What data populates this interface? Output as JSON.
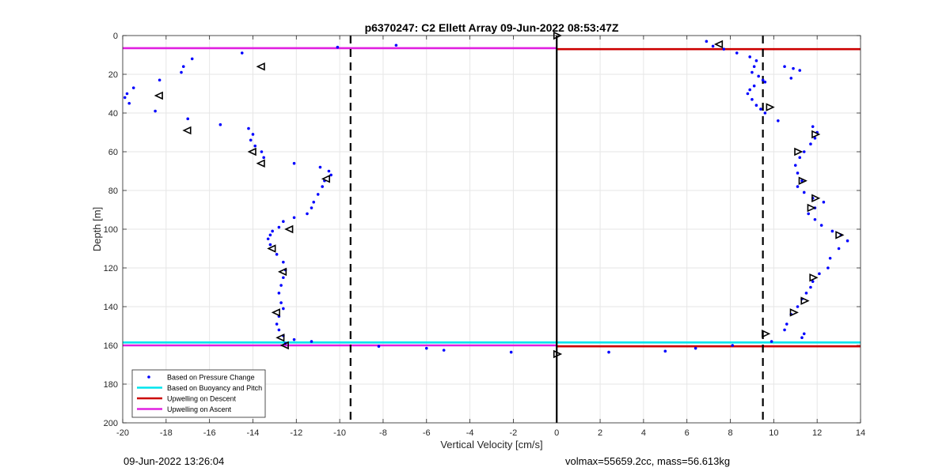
{
  "chart_data": {
    "type": "scatter",
    "title": "p6370247: C2 Ellett Array 09-Jun-2022 08:53:47Z",
    "xlabel": "Vertical Velocity [cm/s]",
    "ylabel": "Depth [m]",
    "xlim": [
      -20,
      14
    ],
    "ylim": [
      0,
      200
    ],
    "y_reversed": true,
    "grid": true,
    "xticks": [
      -20,
      -18,
      -16,
      -14,
      -12,
      -10,
      -8,
      -6,
      -4,
      -2,
      0,
      2,
      4,
      6,
      8,
      10,
      12,
      14
    ],
    "yticks": [
      0,
      20,
      40,
      60,
      80,
      100,
      120,
      140,
      160,
      180,
      200
    ],
    "legend_location": "bottom-left",
    "legend": [
      {
        "label": "Based on Pressure Change",
        "color": "#0000ff",
        "marker": "dot"
      },
      {
        "label": "Based on Buoyancy and Pitch",
        "color": "#00e5ee",
        "marker": "line"
      },
      {
        "label": "Upwelling on Descent",
        "color": "#cc0000",
        "marker": "line"
      },
      {
        "label": "Upwelling on Ascent",
        "color": "#e020e0",
        "marker": "line"
      }
    ],
    "vertical_lines": [
      {
        "x": -9.5,
        "style": "dashed",
        "color": "#000000"
      },
      {
        "x": 9.5,
        "style": "dashed",
        "color": "#000000"
      },
      {
        "x": 0,
        "style": "solid",
        "color": "#000000"
      }
    ],
    "horizontal_lines": [
      {
        "name": "Upwelling on Ascent",
        "y": 6.5,
        "x": [
          -20,
          0
        ],
        "color": "#e020e0"
      },
      {
        "name": "Upwelling on Descent",
        "y": 7,
        "x": [
          0,
          14
        ],
        "color": "#cc0000"
      },
      {
        "name": "Based on Buoyancy and Pitch",
        "y": 158.5,
        "x": [
          -20,
          14
        ],
        "color": "#00e5ee"
      },
      {
        "name": "Upwelling on Ascent",
        "y": 160,
        "x": [
          -20,
          0
        ],
        "color": "#e020e0"
      },
      {
        "name": "Upwelling on Descent",
        "y": 160.5,
        "x": [
          0,
          14
        ],
        "color": "#cc0000"
      }
    ],
    "series": [
      {
        "name": "Based on Pressure Change",
        "color": "#0000ff",
        "points": [
          [
            -14.5,
            9
          ],
          [
            -16.8,
            12
          ],
          [
            -17.2,
            16
          ],
          [
            -17.3,
            19
          ],
          [
            -18.3,
            23
          ],
          [
            -19.5,
            27
          ],
          [
            -19.8,
            30
          ],
          [
            -19.9,
            32
          ],
          [
            -19.7,
            35
          ],
          [
            -18.5,
            39
          ],
          [
            -17.0,
            43
          ],
          [
            -15.5,
            46
          ],
          [
            -14.2,
            48
          ],
          [
            -14.0,
            51
          ],
          [
            -14.1,
            54
          ],
          [
            -13.9,
            57
          ],
          [
            -13.6,
            60
          ],
          [
            -13.5,
            63
          ],
          [
            -12.1,
            66
          ],
          [
            -10.9,
            68
          ],
          [
            -10.5,
            70
          ],
          [
            -10.4,
            72
          ],
          [
            -10.7,
            75
          ],
          [
            -10.8,
            78
          ],
          [
            -11.0,
            82
          ],
          [
            -11.2,
            86
          ],
          [
            -11.3,
            89
          ],
          [
            -11.5,
            92
          ],
          [
            -12.1,
            94
          ],
          [
            -12.6,
            96
          ],
          [
            -12.8,
            99
          ],
          [
            -13.1,
            101
          ],
          [
            -13.2,
            103
          ],
          [
            -13.3,
            105
          ],
          [
            -13.2,
            108
          ],
          [
            -12.9,
            113
          ],
          [
            -12.6,
            117
          ],
          [
            -12.5,
            121
          ],
          [
            -12.6,
            125
          ],
          [
            -12.7,
            129
          ],
          [
            -12.8,
            133
          ],
          [
            -12.7,
            138
          ],
          [
            -12.6,
            141
          ],
          [
            -12.8,
            145
          ],
          [
            -12.9,
            149
          ],
          [
            -12.8,
            152
          ],
          [
            -12.6,
            155
          ],
          [
            -12.1,
            157
          ],
          [
            -11.3,
            158
          ],
          [
            -12.5,
            159
          ],
          [
            -10.1,
            6
          ],
          [
            -7.4,
            5
          ],
          [
            -8.2,
            160.5
          ],
          [
            -6.0,
            161.5
          ],
          [
            -5.2,
            162.5
          ],
          [
            -2.1,
            163.5
          ],
          [
            2.4,
            163.5
          ],
          [
            5.0,
            163
          ],
          [
            6.4,
            161.5
          ],
          [
            8.1,
            160
          ],
          [
            6.9,
            3
          ],
          [
            7.2,
            5.5
          ],
          [
            7.7,
            7
          ],
          [
            8.3,
            9
          ],
          [
            8.9,
            11
          ],
          [
            9.2,
            13
          ],
          [
            9.1,
            16
          ],
          [
            9.0,
            19
          ],
          [
            9.3,
            21
          ],
          [
            9.5,
            23
          ],
          [
            9.1,
            26
          ],
          [
            8.9,
            28
          ],
          [
            8.8,
            30
          ],
          [
            9.0,
            33
          ],
          [
            9.2,
            36
          ],
          [
            9.4,
            38
          ],
          [
            9.6,
            40
          ],
          [
            10.2,
            44
          ],
          [
            11.8,
            47
          ],
          [
            12.0,
            50
          ],
          [
            11.9,
            53
          ],
          [
            11.7,
            56
          ],
          [
            11.4,
            60
          ],
          [
            11.2,
            63
          ],
          [
            11.0,
            67
          ],
          [
            11.1,
            71
          ],
          [
            11.3,
            75
          ],
          [
            11.1,
            78
          ],
          [
            11.4,
            81
          ],
          [
            11.8,
            84
          ],
          [
            12.3,
            86
          ],
          [
            11.9,
            89
          ],
          [
            11.6,
            92
          ],
          [
            11.9,
            95
          ],
          [
            12.2,
            98
          ],
          [
            12.7,
            101
          ],
          [
            13.1,
            103
          ],
          [
            13.4,
            106
          ],
          [
            13.0,
            110
          ],
          [
            12.6,
            115
          ],
          [
            12.5,
            120
          ],
          [
            12.1,
            123
          ],
          [
            11.8,
            127
          ],
          [
            11.7,
            130
          ],
          [
            11.5,
            133
          ],
          [
            11.3,
            136
          ],
          [
            11.1,
            140
          ],
          [
            10.8,
            144
          ],
          [
            10.6,
            149
          ],
          [
            10.5,
            152
          ],
          [
            11.4,
            154
          ],
          [
            11.3,
            156
          ],
          [
            9.9,
            158
          ],
          [
            10.5,
            16
          ],
          [
            10.9,
            17
          ],
          [
            11.2,
            18
          ],
          [
            10.8,
            22
          ],
          [
            9.6,
            24
          ]
        ]
      },
      {
        "name": "Based on Buoyancy and Pitch",
        "color": "#000000",
        "marker": "triangle",
        "points_left": [
          [
            -13.6,
            16
          ],
          [
            -18.3,
            31
          ],
          [
            -17.0,
            49
          ],
          [
            -14.0,
            60
          ],
          [
            -13.6,
            66
          ],
          [
            -10.6,
            74
          ],
          [
            -12.3,
            100
          ],
          [
            -13.1,
            110
          ],
          [
            -12.6,
            122
          ],
          [
            -12.9,
            143
          ],
          [
            -12.7,
            156
          ],
          [
            -12.5,
            160
          ],
          [
            7.5,
            4.5
          ]
        ],
        "points_right": [
          [
            0,
            0
          ],
          [
            9.8,
            37
          ],
          [
            11.9,
            51
          ],
          [
            11.1,
            60
          ],
          [
            11.3,
            75
          ],
          [
            11.9,
            84
          ],
          [
            11.7,
            89
          ],
          [
            13.0,
            103
          ],
          [
            11.8,
            125
          ],
          [
            11.4,
            137
          ],
          [
            10.9,
            143
          ],
          [
            9.6,
            154
          ],
          [
            0,
            164.5
          ]
        ]
      }
    ]
  },
  "footer": {
    "date": "09-Jun-2022 13:26:04",
    "info": "volmax=55659.2cc, mass=56.613kg"
  }
}
